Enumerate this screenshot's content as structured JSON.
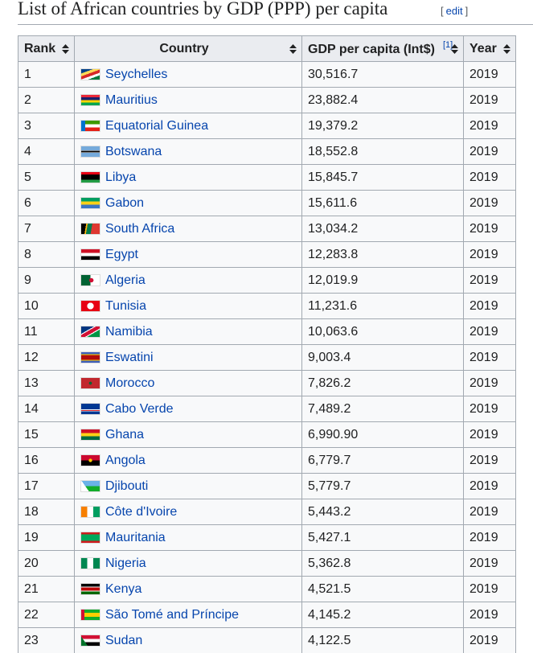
{
  "header": {
    "title": "List of African countries by GDP (PPP) per capita",
    "edit_open": "[",
    "edit": "edit",
    "edit_close": "]"
  },
  "table": {
    "columns": [
      "Rank",
      "Country",
      "GDP per capita (Int$)",
      "Year"
    ],
    "footnote": "[1]",
    "rows": [
      [
        "1",
        "Seychelles",
        "30,516.7",
        "2019"
      ],
      [
        "2",
        "Mauritius",
        "23,882.4",
        "2019"
      ],
      [
        "3",
        "Equatorial Guinea",
        "19,379.2",
        "2019"
      ],
      [
        "4",
        "Botswana",
        "18,552.8",
        "2019"
      ],
      [
        "5",
        "Libya",
        "15,845.7",
        "2019"
      ],
      [
        "6",
        "Gabon",
        "15,611.6",
        "2019"
      ],
      [
        "7",
        "South Africa",
        "13,034.2",
        "2019"
      ],
      [
        "8",
        "Egypt",
        "12,283.8",
        "2019"
      ],
      [
        "9",
        "Algeria",
        "12,019.9",
        "2019"
      ],
      [
        "10",
        "Tunisia",
        "11,231.6",
        "2019"
      ],
      [
        "11",
        "Namibia",
        "10,063.6",
        "2019"
      ],
      [
        "12",
        "Eswatini",
        "9,003.4",
        "2019"
      ],
      [
        "13",
        "Morocco",
        "7,826.2",
        "2019"
      ],
      [
        "14",
        "Cabo Verde",
        "7,489.2",
        "2019"
      ],
      [
        "15",
        "Ghana",
        "6,990.90",
        "2019"
      ],
      [
        "16",
        "Angola",
        "6,779.7",
        "2019"
      ],
      [
        "17",
        "Djibouti",
        "5,779.7",
        "2019"
      ],
      [
        "18",
        "Côte d'Ivoire",
        "5,443.2",
        "2019"
      ],
      [
        "19",
        "Mauritania",
        "5,427.1",
        "2019"
      ],
      [
        "20",
        "Nigeria",
        "5,362.8",
        "2019"
      ],
      [
        "21",
        "Kenya",
        "4,521.5",
        "2019"
      ],
      [
        "22",
        "São Tomé and Príncipe",
        "4,145.2",
        "2019"
      ],
      [
        "23",
        "Sudan",
        "4,122.5",
        "2019"
      ]
    ]
  }
}
